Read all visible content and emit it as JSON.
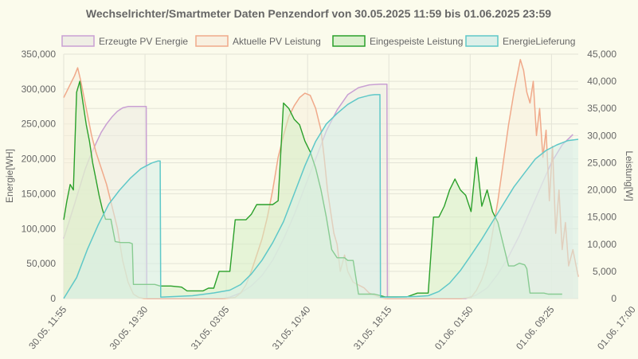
{
  "chart_data": {
    "type": "area",
    "title": "Wechselrichter/Smartmeter Daten Penzendorf von 30.05.2025 11:59 bis 01.06.2025 23:59",
    "ylabel_left": "Energie[WH]",
    "ylabel_right": "Leistung[W]",
    "ylim_left": [
      0,
      350000
    ],
    "ylim_right": [
      0,
      45000
    ],
    "yticks_left": [
      "0",
      "50,000",
      "100,000",
      "150,000",
      "200,000",
      "250,000",
      "300,000",
      "350,000"
    ],
    "yticks_right": [
      "0",
      "5,000",
      "10,000",
      "15,000",
      "20,000",
      "25,000",
      "30,000",
      "35,000",
      "40,000",
      "45,000"
    ],
    "x_range_hours": [
      0,
      48
    ],
    "x_ticks": [
      {
        "label": "30.05. 11:55",
        "h": 0
      },
      {
        "label": "30.05. 19:30",
        "h": 7.583
      },
      {
        "label": "31.05. 03:05",
        "h": 15.167
      },
      {
        "label": "31.05. 10:40",
        "h": 22.75
      },
      {
        "label": "31.05. 18:15",
        "h": 30.333
      },
      {
        "label": "01.06. 01:50",
        "h": 37.917
      },
      {
        "label": "01.06. 09:25",
        "h": 45.5
      },
      {
        "label": "01.06. 17:00",
        "h": 53.083
      }
    ],
    "grid": true,
    "legend_position": "top",
    "series": [
      {
        "name": "Erzeugte PV Energie",
        "axis": "left",
        "color": "#c9a0d3",
        "fill": "#ecebe2",
        "points": [
          [
            0,
            86000
          ],
          [
            0.5,
            110000
          ],
          [
            1,
            135000
          ],
          [
            1.5,
            160000
          ],
          [
            2,
            185000
          ],
          [
            2.5,
            205000
          ],
          [
            3,
            222000
          ],
          [
            3.5,
            238000
          ],
          [
            4,
            250000
          ],
          [
            4.5,
            260000
          ],
          [
            5,
            268000
          ],
          [
            5.5,
            273000
          ],
          [
            6,
            275000
          ],
          [
            7.7,
            275000
          ],
          [
            7.75,
            0
          ],
          [
            14.8,
            0
          ],
          [
            15.5,
            2000
          ],
          [
            16.5,
            8000
          ],
          [
            17.5,
            18000
          ],
          [
            18.5,
            33000
          ],
          [
            19.5,
            55000
          ],
          [
            20.5,
            85000
          ],
          [
            21.5,
            120000
          ],
          [
            22.5,
            160000
          ],
          [
            23.5,
            200000
          ],
          [
            24.5,
            240000
          ],
          [
            25.5,
            270000
          ],
          [
            26.5,
            292000
          ],
          [
            27.5,
            302000
          ],
          [
            28.5,
            306000
          ],
          [
            29.5,
            307000
          ],
          [
            30.15,
            307000
          ],
          [
            30.2,
            0
          ],
          [
            37.5,
            0
          ],
          [
            38.5,
            5000
          ],
          [
            39.5,
            15000
          ],
          [
            40.5,
            35000
          ],
          [
            41.5,
            60000
          ],
          [
            42.5,
            90000
          ],
          [
            43.5,
            125000
          ],
          [
            44.5,
            160000
          ],
          [
            45.5,
            195000
          ],
          [
            46.5,
            220000
          ],
          [
            47.5,
            235000
          ],
          [
            48.5,
            240000
          ],
          [
            49.5,
            241000
          ],
          [
            50.2,
            241000
          ],
          [
            50.25,
            0
          ],
          [
            51.8,
            0
          ]
        ]
      },
      {
        "name": "Aktuelle PV Leistung",
        "axis": "right",
        "color": "#f0a98a",
        "fill": "#f7eedd",
        "points": [
          [
            0,
            37000
          ],
          [
            0.5,
            39000
          ],
          [
            1,
            41000
          ],
          [
            1.3,
            42500
          ],
          [
            1.6,
            40000
          ],
          [
            2,
            36000
          ],
          [
            2.3,
            33000
          ],
          [
            2.6,
            30000
          ],
          [
            3,
            27000
          ],
          [
            3.5,
            24000
          ],
          [
            4,
            21000
          ],
          [
            4.5,
            17000
          ],
          [
            5,
            13000
          ],
          [
            5.5,
            7000
          ],
          [
            6,
            3000
          ],
          [
            6.5,
            800
          ],
          [
            7,
            200
          ],
          [
            7.5,
            0
          ],
          [
            15,
            0
          ],
          [
            16,
            200
          ],
          [
            16.5,
            1000
          ],
          [
            17,
            2500
          ],
          [
            17.5,
            5000
          ],
          [
            18,
            8000
          ],
          [
            18.5,
            11000
          ],
          [
            19,
            15000
          ],
          [
            19.5,
            20000
          ],
          [
            20,
            26000
          ],
          [
            20.5,
            30000
          ],
          [
            21,
            33500
          ],
          [
            21.5,
            35500
          ],
          [
            22,
            37000
          ],
          [
            22.5,
            37800
          ],
          [
            23,
            37400
          ],
          [
            23.5,
            35000
          ],
          [
            24,
            31000
          ],
          [
            24.3,
            26000
          ],
          [
            24.6,
            20000
          ],
          [
            24.9,
            16000
          ],
          [
            25.2,
            12000
          ],
          [
            25.5,
            10000
          ],
          [
            25.8,
            5000
          ],
          [
            26.2,
            8000
          ],
          [
            26.5,
            5000
          ],
          [
            27,
            3000
          ],
          [
            28,
            2000
          ],
          [
            28.5,
            1000
          ],
          [
            29.5,
            200
          ],
          [
            30,
            0
          ],
          [
            37,
            0
          ],
          [
            38,
            200
          ],
          [
            38.5,
            1500
          ],
          [
            39,
            3500
          ],
          [
            39.5,
            6500
          ],
          [
            40,
            12000
          ],
          [
            40.5,
            18000
          ],
          [
            41,
            25000
          ],
          [
            41.5,
            32000
          ],
          [
            42,
            38000
          ],
          [
            42.3,
            41000
          ],
          [
            42.6,
            44000
          ],
          [
            42.9,
            42000
          ],
          [
            43.2,
            38000
          ],
          [
            43.5,
            36000
          ],
          [
            43.8,
            40000
          ],
          [
            44.1,
            30000
          ],
          [
            44.4,
            35000
          ],
          [
            44.7,
            26000
          ],
          [
            45,
            31000
          ],
          [
            45.3,
            18000
          ],
          [
            45.6,
            28000
          ],
          [
            45.9,
            12000
          ],
          [
            46.2,
            20000
          ],
          [
            46.5,
            9000
          ],
          [
            46.8,
            14000
          ],
          [
            47.1,
            6000
          ],
          [
            47.5,
            9000
          ],
          [
            48,
            4000
          ],
          [
            48.5,
            2500
          ],
          [
            49,
            1500
          ],
          [
            49.5,
            600
          ],
          [
            50.5,
            0
          ],
          [
            51.8,
            0
          ]
        ]
      },
      {
        "name": "Eingespeiste Leistung",
        "axis": "right",
        "color": "#2aa02a",
        "fill": "#d5eec7",
        "points": [
          [
            0,
            14500
          ],
          [
            0.3,
            18000
          ],
          [
            0.6,
            21000
          ],
          [
            0.9,
            20000
          ],
          [
            1.2,
            38000
          ],
          [
            1.5,
            40000
          ],
          [
            1.8,
            36000
          ],
          [
            2.1,
            32000
          ],
          [
            2.4,
            29000
          ],
          [
            2.7,
            25000
          ],
          [
            3.0,
            22000
          ],
          [
            3.3,
            19000
          ],
          [
            3.6,
            16500
          ],
          [
            3.9,
            14600
          ],
          [
            4.4,
            14600
          ],
          [
            4.8,
            10500
          ],
          [
            5.3,
            10300
          ],
          [
            5.8,
            10300
          ],
          [
            6.1,
            10300
          ],
          [
            6.4,
            10100
          ],
          [
            6.5,
            2600
          ],
          [
            8.5,
            2600
          ],
          [
            9.0,
            2300
          ],
          [
            10.0,
            2300
          ],
          [
            11.0,
            2100
          ],
          [
            11.5,
            1400
          ],
          [
            13.0,
            1400
          ],
          [
            13.5,
            1900
          ],
          [
            14.0,
            1900
          ],
          [
            14.5,
            5000
          ],
          [
            15.5,
            5000
          ],
          [
            16.0,
            14500
          ],
          [
            17.0,
            14500
          ],
          [
            17.5,
            15500
          ],
          [
            18.0,
            17300
          ],
          [
            19.0,
            17300
          ],
          [
            19.5,
            17300
          ],
          [
            20.0,
            18000
          ],
          [
            20.5,
            36000
          ],
          [
            21.0,
            35000
          ],
          [
            21.5,
            33000
          ],
          [
            22.0,
            32000
          ],
          [
            22.5,
            29000
          ],
          [
            23.0,
            27000
          ],
          [
            23.5,
            24000
          ],
          [
            24.0,
            20000
          ],
          [
            24.5,
            15000
          ],
          [
            25.0,
            9000
          ],
          [
            25.5,
            7500
          ],
          [
            26.2,
            7500
          ],
          [
            26.5,
            7000
          ],
          [
            27.0,
            7000
          ],
          [
            27.5,
            800
          ],
          [
            29.0,
            800
          ],
          [
            30.0,
            300
          ],
          [
            32.0,
            300
          ],
          [
            33.0,
            1000
          ],
          [
            34.0,
            1000
          ],
          [
            34.5,
            15000
          ],
          [
            35.0,
            15000
          ],
          [
            35.5,
            17000
          ],
          [
            36.0,
            20000
          ],
          [
            36.5,
            22000
          ],
          [
            37.0,
            20000
          ],
          [
            37.5,
            19000
          ],
          [
            38.0,
            16000
          ],
          [
            38.5,
            26000
          ],
          [
            39.0,
            17000
          ],
          [
            39.5,
            20000
          ],
          [
            40.0,
            16000
          ],
          [
            40.5,
            14000
          ],
          [
            41.0,
            10000
          ],
          [
            41.5,
            6000
          ],
          [
            42.0,
            6000
          ],
          [
            42.5,
            6500
          ],
          [
            43.0,
            6200
          ],
          [
            43.2,
            5500
          ],
          [
            43.5,
            1000
          ],
          [
            44.8,
            1000
          ],
          [
            45.2,
            800
          ],
          [
            46.5,
            800
          ]
        ]
      },
      {
        "name": "EnergieLieferung",
        "axis": "left",
        "color": "#5fc8c8",
        "fill": "#d6eee8",
        "points": [
          [
            0,
            0
          ],
          [
            1.2,
            30000
          ],
          [
            2.2,
            70000
          ],
          [
            3.2,
            105000
          ],
          [
            4.2,
            135000
          ],
          [
            5.2,
            155000
          ],
          [
            6.2,
            172000
          ],
          [
            7.2,
            186000
          ],
          [
            8.2,
            194000
          ],
          [
            8.8,
            197000
          ],
          [
            9.0,
            197000
          ],
          [
            9.05,
            2000
          ],
          [
            12,
            4000
          ],
          [
            14,
            8000
          ],
          [
            15.5,
            12000
          ],
          [
            16.5,
            20000
          ],
          [
            17.5,
            35000
          ],
          [
            18.5,
            55000
          ],
          [
            19.5,
            80000
          ],
          [
            20.5,
            110000
          ],
          [
            21.5,
            150000
          ],
          [
            22.5,
            190000
          ],
          [
            23.5,
            225000
          ],
          [
            24.5,
            250000
          ],
          [
            25.5,
            265000
          ],
          [
            26.5,
            278000
          ],
          [
            27.5,
            287000
          ],
          [
            28.5,
            291000
          ],
          [
            29.0,
            292000
          ],
          [
            29.5,
            292000
          ],
          [
            29.55,
            2000
          ],
          [
            31,
            2000
          ],
          [
            33,
            3000
          ],
          [
            34,
            4000
          ],
          [
            35,
            10000
          ],
          [
            36,
            22000
          ],
          [
            37,
            40000
          ],
          [
            38,
            62000
          ],
          [
            39,
            85000
          ],
          [
            40,
            110000
          ],
          [
            41,
            135000
          ],
          [
            42,
            160000
          ],
          [
            43,
            180000
          ],
          [
            44,
            200000
          ],
          [
            45,
            212000
          ],
          [
            46,
            220000
          ],
          [
            47,
            226000
          ],
          [
            48,
            228000
          ]
        ]
      }
    ]
  }
}
